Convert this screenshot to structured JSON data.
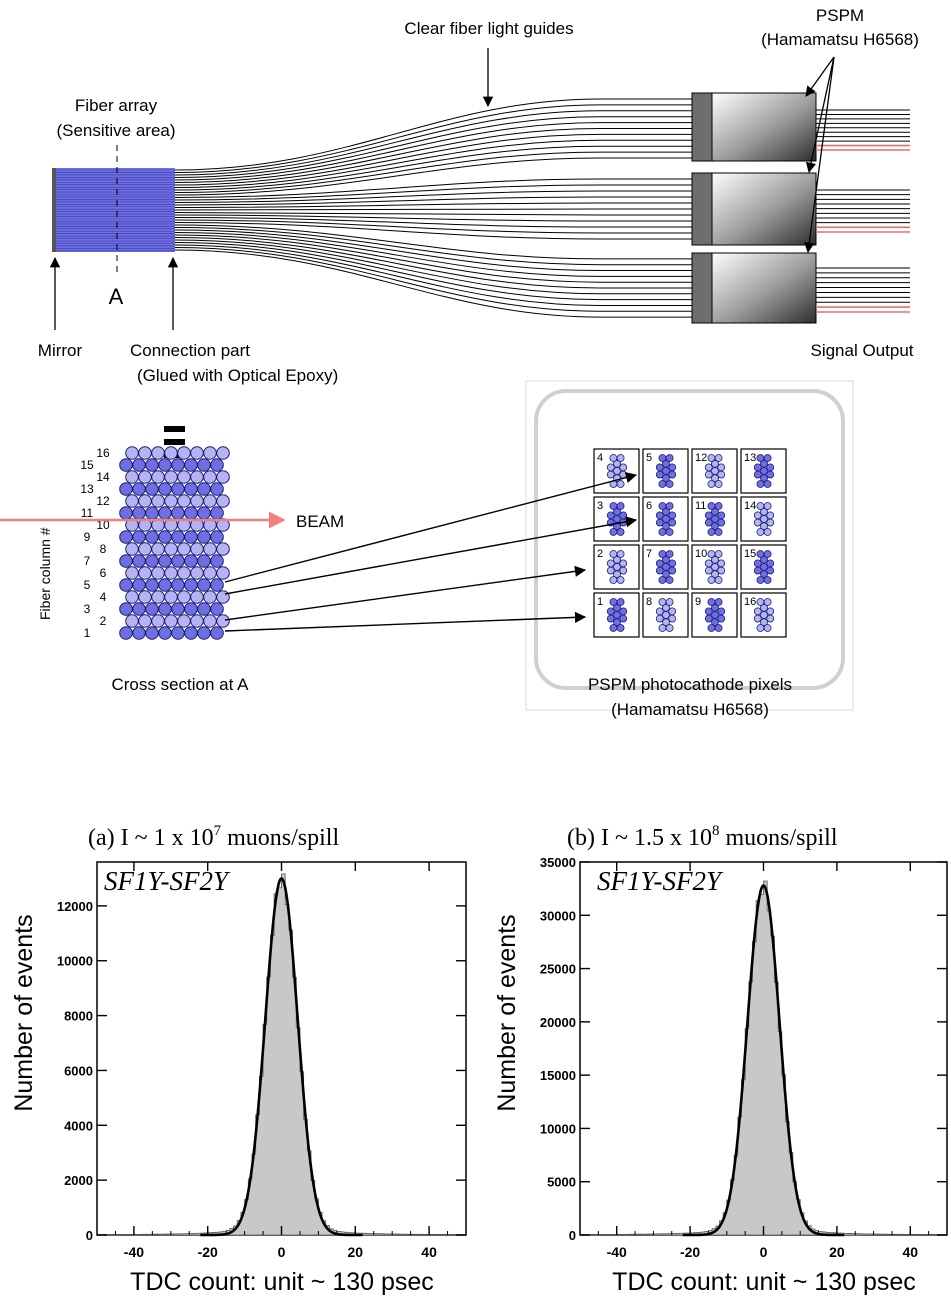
{
  "diagram": {
    "label_clear_fiber": "Clear fiber light guides",
    "label_pspm": "PSPM",
    "label_pspm_model": "(Hamamatsu H6568)",
    "label_fiber_array": "Fiber array",
    "label_sensitive_area": "(Sensitive area)",
    "label_a": "A",
    "label_mirror": "Mirror",
    "label_connection": "Connection part",
    "label_glued": "(Glued with Optical Epoxy)",
    "label_signal_output": "Signal Output",
    "label_fiber_column": "Fiber column #",
    "label_beam": "BEAM",
    "label_cross_section": "Cross section at A",
    "label_photocathode": "PSPM photocathode pixels",
    "label_photocathode_model": "(Hamamatsu H6568)",
    "column_numbers": [
      "1",
      "2",
      "3",
      "4",
      "5",
      "6",
      "7",
      "8",
      "9",
      "10",
      "11",
      "12",
      "13",
      "14",
      "15",
      "16"
    ],
    "pixel_grid": [
      [
        "4",
        "5",
        "12",
        "13"
      ],
      [
        "3",
        "6",
        "11",
        "14"
      ],
      [
        "2",
        "7",
        "10",
        "15"
      ],
      [
        "1",
        "8",
        "9",
        "16"
      ]
    ],
    "colors": {
      "fiber_blue": "#6e6ee6",
      "fiber_light": "#b4b4f5",
      "beam": "#f08080",
      "signal_red": "#e07070"
    }
  },
  "chart_data": [
    {
      "type": "histogram",
      "title": "(a) I ~ 1 x 10",
      "title_exp": "7",
      "title_unit": " muons/spill",
      "inset": "SF1Y-SF2Y",
      "xlabel": "TDC count: unit ~ 130 psec",
      "ylabel": "Number of events",
      "xlim": [
        -50,
        50
      ],
      "ylim": [
        0,
        13600
      ],
      "xticks": [
        "-40",
        "-20",
        "0",
        "20",
        "40"
      ],
      "yticks": [
        "0",
        "2000",
        "4000",
        "6000",
        "8000",
        "10000",
        "12000"
      ],
      "ytick_values": [
        0,
        2000,
        4000,
        6000,
        8000,
        10000,
        12000
      ],
      "peak": 13000,
      "peak_x": 0,
      "sigma": 4.3,
      "tail_fraction": 0.035
    },
    {
      "type": "histogram",
      "title": "(b) I ~ 1.5 x 10",
      "title_exp": "8",
      "title_unit": " muons/spill",
      "inset": "SF1Y-SF2Y",
      "xlabel": "TDC count: unit ~ 130 psec",
      "ylabel": "Number of events",
      "xlim": [
        -50,
        50
      ],
      "ylim": [
        0,
        35000
      ],
      "xticks": [
        "-40",
        "-20",
        "0",
        "20",
        "40"
      ],
      "yticks": [
        "0",
        "5000",
        "10000",
        "15000",
        "20000",
        "25000",
        "30000",
        "35000"
      ],
      "ytick_values": [
        0,
        5000,
        10000,
        15000,
        20000,
        25000,
        30000,
        35000
      ],
      "peak": 32800,
      "peak_x": 0,
      "sigma": 4.3,
      "tail_fraction": 0.035
    }
  ]
}
